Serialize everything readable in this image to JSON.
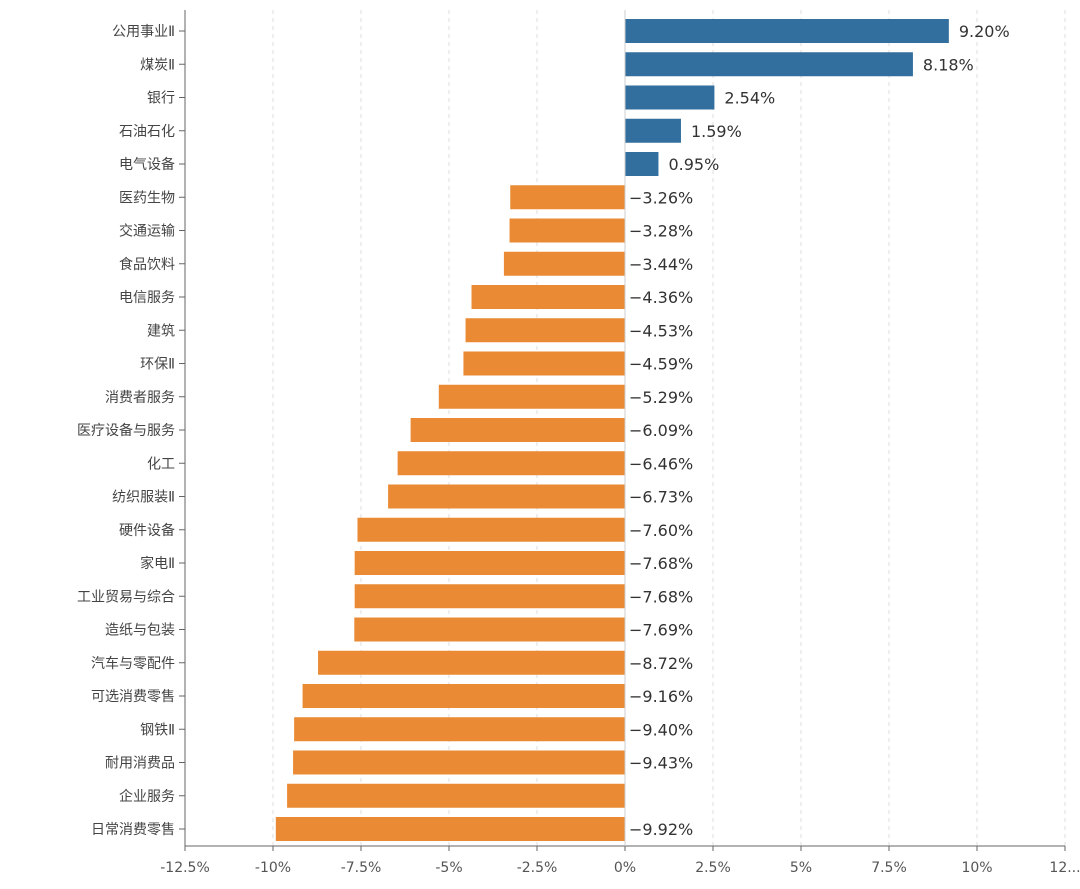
{
  "chart_data": {
    "type": "bar",
    "orientation": "horizontal",
    "categories": [
      "公用事业Ⅱ",
      "煤炭Ⅱ",
      "银行",
      "石油石化",
      "电气设备",
      "医药生物",
      "交通运输",
      "食品饮料",
      "电信服务",
      "建筑",
      "环保Ⅱ",
      "消费者服务",
      "医疗设备与服务",
      "化工",
      "纺织服装Ⅱ",
      "硬件设备",
      "家电Ⅱ",
      "工业贸易与综合",
      "造纸与包装",
      "汽车与零配件",
      "可选消费零售",
      "钢铁Ⅱ",
      "耐用消费品",
      "企业服务",
      "日常消费零售"
    ],
    "values": [
      9.2,
      8.18,
      2.54,
      1.59,
      0.95,
      -3.26,
      -3.28,
      -3.44,
      -4.36,
      -4.53,
      -4.59,
      -5.29,
      -6.09,
      -6.46,
      -6.73,
      -7.6,
      -7.68,
      -7.68,
      -7.69,
      -8.72,
      -9.16,
      -9.4,
      -9.43,
      -9.6,
      -9.92
    ],
    "value_labels": [
      "9.20%",
      "8.18%",
      "2.54%",
      "1.59%",
      "0.95%",
      "-3.26%",
      "-3.28%",
      "-3.44%",
      "-4.36%",
      "-4.53%",
      "-4.59%",
      "-5.29%",
      "-6.09%",
      "-6.46%",
      "-6.73%",
      "-7.60%",
      "-7.68%",
      "-7.68%",
      "-7.69%",
      "-8.72%",
      "-9.16%",
      "-9.40%",
      "-9.43%",
      "",
      "-9.92%"
    ],
    "x_ticks": [
      -12.5,
      -10,
      -7.5,
      -5,
      -2.5,
      0,
      2.5,
      5,
      7.5,
      10,
      12.5
    ],
    "x_tick_labels": [
      "-12.5%",
      "-10%",
      "-7.5%",
      "-5%",
      "-2.5%",
      "0%",
      "2.5%",
      "5%",
      "7.5%",
      "10%",
      "12..."
    ],
    "xlim": [
      -12.5,
      12.5
    ],
    "title": "",
    "xlabel": "",
    "ylabel": "",
    "grid": "vertical-dashed",
    "colors": {
      "positive": "#336f9e",
      "negative": "#ea8a34",
      "grid": "#dddddd",
      "axis": "#666666"
    }
  }
}
